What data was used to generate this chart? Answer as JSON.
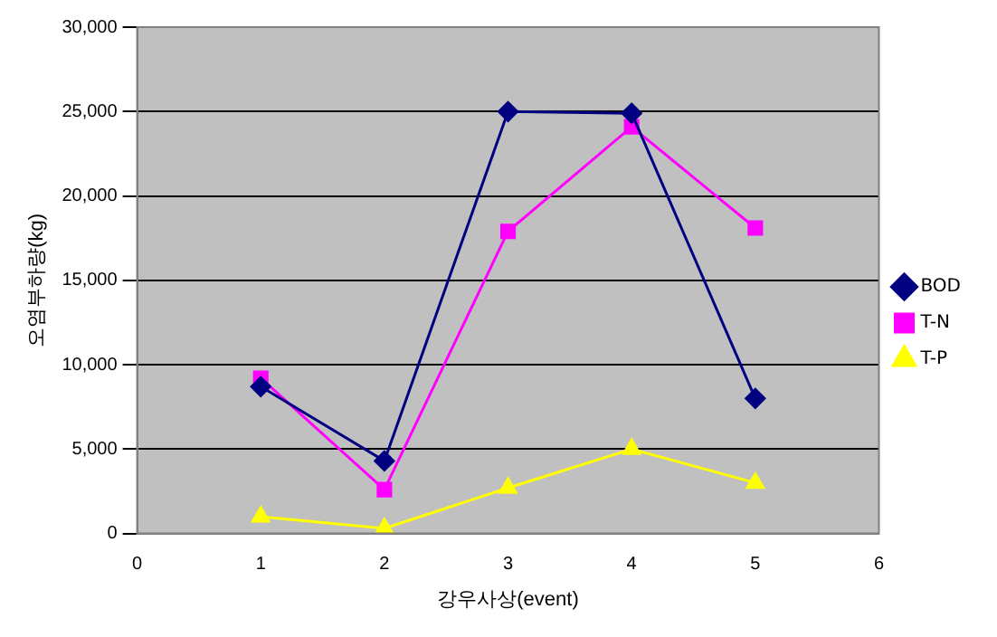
{
  "chart_data": {
    "type": "line",
    "xlabel": "강우사상(event)",
    "ylabel": "오염부하량(kg)",
    "x": [
      1,
      2,
      3,
      4,
      5
    ],
    "xlim": [
      0,
      6
    ],
    "xticks": [
      0,
      1,
      2,
      3,
      4,
      5,
      6
    ],
    "ylim": [
      0,
      30000
    ],
    "yticks": [
      {
        "value": 0,
        "label": "0"
      },
      {
        "value": 5000,
        "label": "5,000"
      },
      {
        "value": 10000,
        "label": "10,000"
      },
      {
        "value": 15000,
        "label": "15,000"
      },
      {
        "value": 20000,
        "label": "20,000"
      },
      {
        "value": 25000,
        "label": "25,000"
      },
      {
        "value": 30000,
        "label": "30,000"
      }
    ],
    "grid": "y",
    "legend": "right",
    "series": [
      {
        "name": "BOD",
        "color": "#000080",
        "marker": "diamond",
        "values": [
          8700,
          4300,
          25000,
          24900,
          8000
        ]
      },
      {
        "name": "T-N",
        "color": "#ff00ff",
        "marker": "square",
        "values": [
          9200,
          2600,
          17900,
          24100,
          18100
        ]
      },
      {
        "name": "T-P",
        "color": "#ffff00",
        "marker": "triangle",
        "values": [
          1000,
          300,
          2700,
          5000,
          3000
        ]
      }
    ]
  }
}
